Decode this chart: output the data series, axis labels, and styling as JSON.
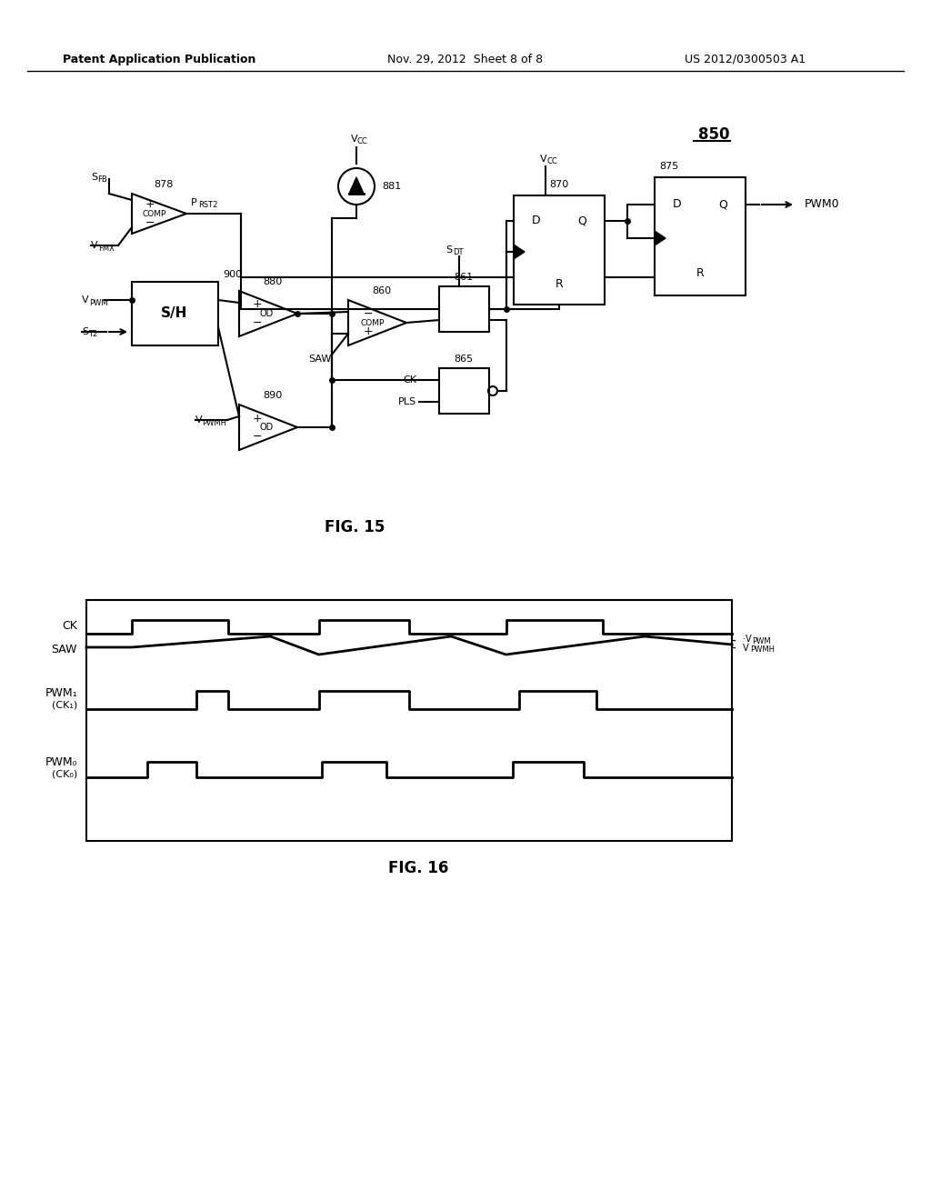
{
  "title_left": "Patent Application Publication",
  "title_mid": "Nov. 29, 2012  Sheet 8 of 8",
  "title_right": "US 2012/0300503 A1",
  "fig15_label": "FIG. 15",
  "fig16_label": "FIG. 16",
  "bg_color": "#ffffff",
  "line_color": "#000000",
  "fig_number": "850"
}
